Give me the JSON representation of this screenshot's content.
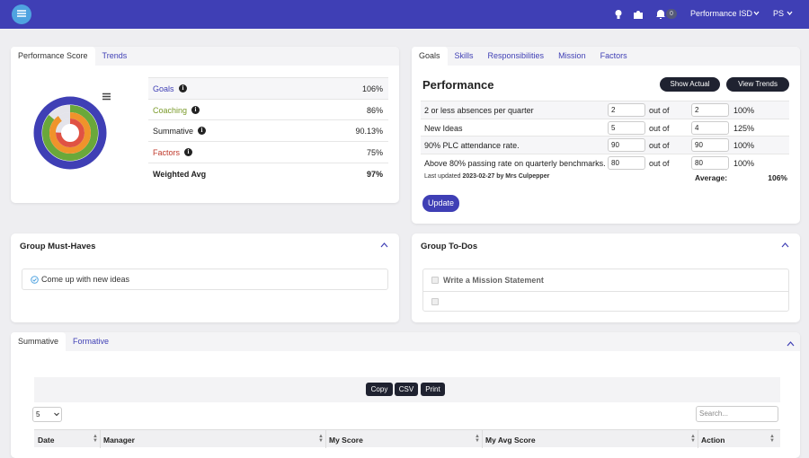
{
  "nav": {
    "notifications": "0",
    "org": "Performance ISD",
    "user": "PS"
  },
  "score_card": {
    "tabs": [
      "Performance Score",
      "Trends"
    ],
    "rows": [
      {
        "label": "Goals",
        "value": "106%"
      },
      {
        "label": "Coaching",
        "value": "86%"
      },
      {
        "label": "Summative",
        "value": "90.13%"
      },
      {
        "label": "Factors",
        "value": "75%"
      }
    ],
    "total": {
      "label": "Weighted Avg",
      "value": "97%"
    }
  },
  "goals_card": {
    "tabs": [
      "Goals",
      "Skills",
      "Responsibilities",
      "Mission",
      "Factors"
    ],
    "title": "Performance",
    "buttons": [
      "Show Actual",
      "View Trends"
    ],
    "out_of_label": "out of",
    "rows": [
      {
        "goal": "2 or less absences per quarter",
        "actual": "2",
        "target": "2",
        "percent": "100%"
      },
      {
        "goal": "New Ideas",
        "actual": "5",
        "target": "4",
        "percent": "125%"
      },
      {
        "goal": "90% PLC attendance rate.",
        "actual": "90",
        "target": "90",
        "percent": "100%"
      },
      {
        "goal": "Above 80% passing rate on quarterly benchmarks.",
        "actual": "80",
        "target": "80",
        "percent": "100%"
      }
    ],
    "updated_prefix": "Last updated",
    "updated": "2023-02-27 by Mrs Culpepper",
    "average_label": "Average:",
    "average": "106%",
    "update_button": "Update"
  },
  "must_haves": {
    "title": "Group Must-Haves",
    "items": [
      "Come up with new ideas"
    ]
  },
  "todos": {
    "title": "Group To-Dos",
    "items": [
      "Write a Mission Statement"
    ]
  },
  "table_card": {
    "tabs": [
      "Summative",
      "Formative"
    ],
    "buttons": [
      "Copy",
      "CSV",
      "Print"
    ],
    "page_size": "5",
    "search_placeholder": "Search...",
    "columns": [
      "Date",
      "Manager",
      "My Score",
      "My Avg Score",
      "Action"
    ]
  }
}
